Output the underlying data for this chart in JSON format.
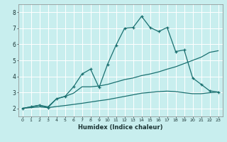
{
  "title": "",
  "xlabel": "Humidex (Indice chaleur)",
  "bg_color": "#c8eeee",
  "line_color": "#1a7070",
  "xlim": [
    -0.5,
    23.5
  ],
  "ylim": [
    1.5,
    8.5
  ],
  "xticks": [
    0,
    1,
    2,
    3,
    4,
    5,
    6,
    7,
    8,
    9,
    10,
    11,
    12,
    13,
    14,
    15,
    16,
    17,
    18,
    19,
    20,
    21,
    22,
    23
  ],
  "yticks": [
    2,
    3,
    4,
    5,
    6,
    7,
    8
  ],
  "lines": [
    {
      "x": [
        0,
        1,
        2,
        3,
        4,
        5,
        6,
        7,
        8,
        9,
        10,
        11,
        12,
        13,
        14,
        15,
        16,
        17,
        18,
        19,
        20,
        21,
        22,
        23
      ],
      "y": [
        2.0,
        2.05,
        2.1,
        2.05,
        2.12,
        2.18,
        2.25,
        2.32,
        2.4,
        2.48,
        2.55,
        2.65,
        2.75,
        2.85,
        2.95,
        3.0,
        3.05,
        3.08,
        3.05,
        2.98,
        2.92,
        2.92,
        2.98,
        3.02
      ],
      "marker": false,
      "lw": 0.9
    },
    {
      "x": [
        0,
        1,
        2,
        3,
        4,
        5,
        6,
        7,
        8,
        9,
        10,
        11,
        12,
        13,
        14,
        15,
        16,
        17,
        18,
        19,
        20,
        21,
        22,
        23
      ],
      "y": [
        2.0,
        2.1,
        2.2,
        2.1,
        2.6,
        2.75,
        2.95,
        3.35,
        3.35,
        3.4,
        3.5,
        3.65,
        3.8,
        3.9,
        4.05,
        4.15,
        4.28,
        4.45,
        4.6,
        4.8,
        5.0,
        5.2,
        5.5,
        5.6
      ],
      "marker": false,
      "lw": 0.9
    },
    {
      "x": [
        0,
        1,
        2,
        3,
        4,
        5,
        6,
        7,
        8,
        9,
        10,
        11,
        12,
        13,
        14,
        15,
        16,
        17,
        18,
        19,
        20,
        21,
        22,
        23
      ],
      "y": [
        2.0,
        2.1,
        2.2,
        2.05,
        2.6,
        2.75,
        3.35,
        4.15,
        4.45,
        3.3,
        4.75,
        5.95,
        7.0,
        7.05,
        7.75,
        7.05,
        6.8,
        7.05,
        5.55,
        5.65,
        3.9,
        3.5,
        3.1,
        3.02
      ],
      "marker": true,
      "lw": 0.9
    }
  ]
}
